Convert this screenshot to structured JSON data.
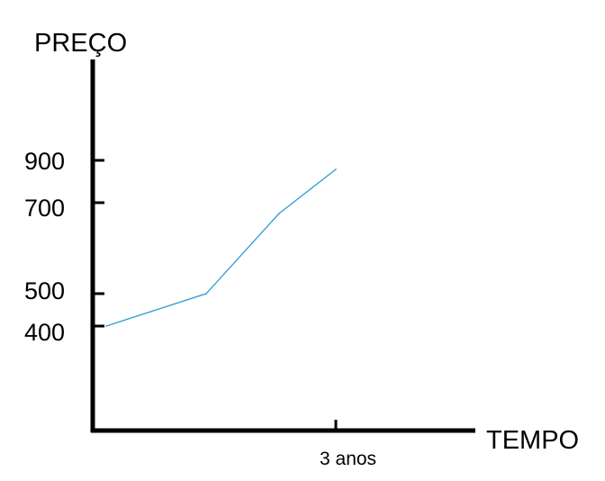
{
  "chart_data": {
    "type": "line",
    "ylabel": "PREÇO",
    "xlabel": "TEMPO",
    "y_ticks": [
      {
        "value": 900,
        "label": "900"
      },
      {
        "value": 700,
        "label": "700"
      },
      {
        "value": 500,
        "label": "500"
      },
      {
        "value": 400,
        "label": "400"
      }
    ],
    "x_ticks": [
      {
        "value": 3,
        "label": "3 anos"
      }
    ],
    "series": [
      {
        "color": "#2e9bd6",
        "x": [
          0.3,
          1.25,
          2.55,
          3.0
        ],
        "y": [
          400,
          500,
          670,
          860
        ]
      }
    ],
    "grid": false
  }
}
